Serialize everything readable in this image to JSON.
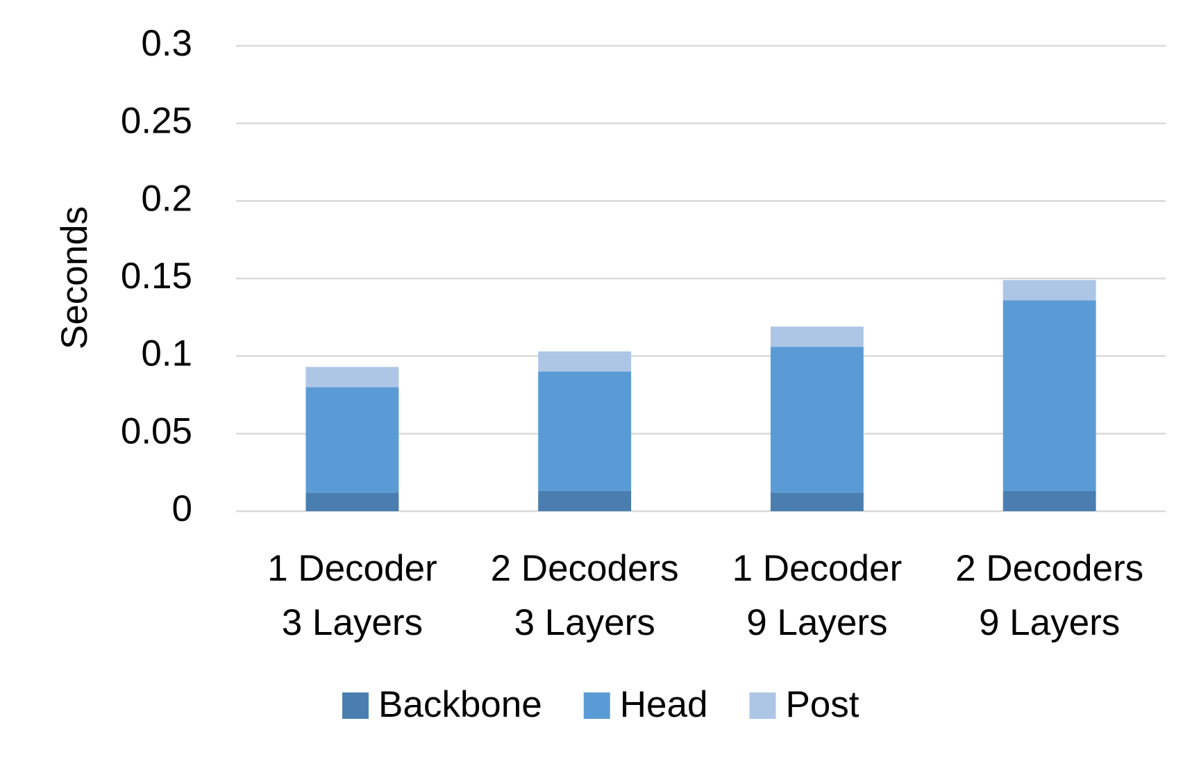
{
  "chart_data": {
    "type": "stacked_bar",
    "y_label": "Seconds",
    "categories": [
      "1 Decoder\n3 Layers",
      "2 Decoders\n3 Layers",
      "1 Decoder\n9 Layers",
      "2 Decoders\n9 Layers"
    ],
    "series": [
      {
        "name": "Backbone",
        "color": "#4a7eb0",
        "values": [
          0.012,
          0.013,
          0.012,
          0.013
        ]
      },
      {
        "name": "Head",
        "color": "#5b9bd5",
        "values": [
          0.068,
          0.077,
          0.094,
          0.123
        ]
      },
      {
        "name": "Post",
        "color": "#adc6e6",
        "values": [
          0.013,
          0.013,
          0.013,
          0.013
        ]
      }
    ],
    "ylim": [
      0,
      0.3
    ],
    "yticks": [
      0,
      0.05,
      0.1,
      0.15,
      0.2,
      0.25,
      0.3
    ],
    "grid": true,
    "legend": "bottom"
  }
}
